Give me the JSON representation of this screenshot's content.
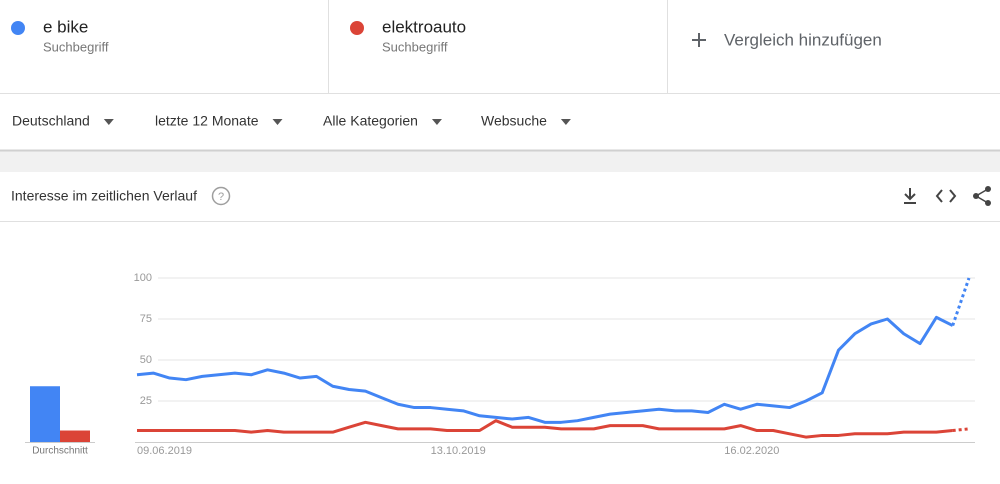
{
  "terms": [
    {
      "name": "e bike",
      "subtitle": "Suchbegriff",
      "color": "#4285f4"
    },
    {
      "name": "elektroauto",
      "subtitle": "Suchbegriff",
      "color": "#db4437"
    }
  ],
  "add_compare": "Vergleich hinzufügen",
  "filters": [
    "Deutschland",
    "letzte 12 Monate",
    "Alle Kategorien",
    "Websuche"
  ],
  "section_title": "Interesse im zeitlichen Verlauf",
  "chart_data": {
    "type": "line",
    "x": [
      "09.06.2019",
      null,
      null,
      null,
      null,
      null,
      null,
      null,
      null,
      null,
      null,
      null,
      null,
      null,
      null,
      null,
      null,
      null,
      "13.10.2019",
      null,
      null,
      null,
      null,
      null,
      null,
      null,
      null,
      null,
      null,
      null,
      null,
      null,
      null,
      null,
      null,
      null,
      "16.02.2020",
      null,
      null,
      null,
      null,
      null,
      null,
      null,
      null,
      null,
      null,
      null,
      null,
      null,
      null,
      null
    ],
    "series": [
      {
        "name": "e bike",
        "color": "#4285f4",
        "average": 34,
        "values": [
          41,
          42,
          39,
          38,
          40,
          41,
          42,
          41,
          44,
          42,
          39,
          40,
          34,
          32,
          31,
          27,
          23,
          21,
          21,
          20,
          19,
          16,
          15,
          14,
          15,
          12,
          12,
          13,
          15,
          17,
          18,
          19,
          20,
          19,
          19,
          18,
          23,
          20,
          23,
          22,
          21,
          25,
          30,
          56,
          66,
          72,
          75,
          66,
          60,
          76,
          71,
          100
        ]
      },
      {
        "name": "elektroauto",
        "color": "#db4437",
        "average": 7,
        "values": [
          7,
          7,
          7,
          7,
          7,
          7,
          7,
          6,
          7,
          6,
          6,
          6,
          6,
          9,
          12,
          10,
          8,
          8,
          8,
          7,
          7,
          7,
          13,
          9,
          9,
          9,
          8,
          8,
          8,
          10,
          10,
          10,
          8,
          8,
          8,
          8,
          8,
          10,
          7,
          7,
          5,
          3,
          4,
          4,
          5,
          5,
          5,
          6,
          6,
          6,
          7,
          8
        ]
      }
    ],
    "average_label": "Durchschnitt",
    "ylim": [
      0,
      100
    ],
    "yticks": [
      25,
      50,
      75,
      100
    ],
    "grid": true,
    "dashed_last_segment": true
  }
}
